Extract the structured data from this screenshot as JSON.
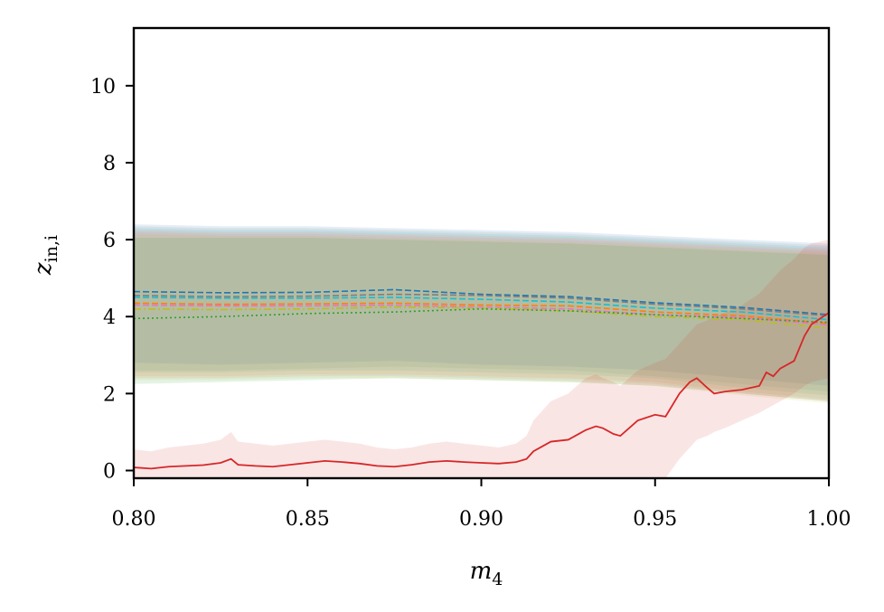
{
  "chart_data": {
    "type": "line",
    "title": "",
    "xlabel": "m_4",
    "ylabel": "z_in,i",
    "xlim": [
      0.8,
      1.0
    ],
    "ylim": [
      -0.2,
      11.5
    ],
    "xticks": [
      0.8,
      0.85,
      0.9,
      0.95,
      1.0
    ],
    "xtick_labels": [
      "0.80",
      "0.85",
      "0.90",
      "0.95",
      "1.00"
    ],
    "yticks": [
      0,
      2,
      4,
      6,
      8,
      10
    ],
    "ytick_labels": [
      "0",
      "2",
      "4",
      "6",
      "8",
      "10"
    ],
    "grid": false,
    "legend": "none",
    "x": [
      0.8,
      0.825,
      0.85,
      0.875,
      0.9,
      0.925,
      0.95,
      0.975,
      1.0
    ],
    "series": [
      {
        "color": "#1f77b4",
        "dash": "dashed",
        "values": [
          4.65,
          4.62,
          4.63,
          4.7,
          4.58,
          4.52,
          4.36,
          4.24,
          4.05
        ],
        "band_lower": [
          2.8,
          2.75,
          2.8,
          2.85,
          2.75,
          2.7,
          2.6,
          2.4,
          2.2
        ],
        "band_upper": [
          6.4,
          6.35,
          6.35,
          6.3,
          6.25,
          6.2,
          6.1,
          6.0,
          5.9
        ]
      },
      {
        "color": "#7f7f7f",
        "dash": "dashed",
        "values": [
          4.55,
          4.52,
          4.53,
          4.58,
          4.55,
          4.48,
          4.32,
          4.2,
          4.02
        ],
        "band_lower": [
          2.6,
          2.6,
          2.65,
          2.7,
          2.65,
          2.6,
          2.45,
          2.25,
          2.05
        ],
        "band_upper": [
          6.35,
          6.3,
          6.3,
          6.25,
          6.2,
          6.15,
          6.05,
          5.95,
          5.85
        ]
      },
      {
        "color": "#17becf",
        "dash": "dashed",
        "values": [
          4.5,
          4.48,
          4.48,
          4.5,
          4.45,
          4.38,
          4.22,
          4.12,
          3.92
        ],
        "band_lower": [
          2.55,
          2.55,
          2.6,
          2.6,
          2.55,
          2.5,
          2.4,
          2.15,
          1.95
        ],
        "band_upper": [
          6.3,
          6.25,
          6.25,
          6.2,
          6.15,
          6.1,
          6.0,
          5.9,
          5.8
        ]
      },
      {
        "color": "#ff7f0e",
        "dash": "dashed",
        "values": [
          4.35,
          4.32,
          4.33,
          4.35,
          4.3,
          4.28,
          4.12,
          4.02,
          3.82
        ],
        "band_lower": [
          2.45,
          2.45,
          2.5,
          2.5,
          2.45,
          2.4,
          2.3,
          2.05,
          1.85
        ],
        "band_upper": [
          6.25,
          6.2,
          6.2,
          6.15,
          6.1,
          6.05,
          5.95,
          5.85,
          5.75
        ]
      },
      {
        "color": "#e377c2",
        "dash": "dashed",
        "values": [
          4.3,
          4.28,
          4.28,
          4.3,
          4.25,
          4.2,
          4.05,
          3.98,
          3.78
        ],
        "band_lower": [
          2.4,
          2.4,
          2.45,
          2.45,
          2.4,
          2.35,
          2.25,
          2.0,
          1.8
        ],
        "band_upper": [
          6.2,
          6.15,
          6.15,
          6.1,
          6.05,
          6.0,
          5.9,
          5.8,
          5.7
        ]
      },
      {
        "color": "#bcbd22",
        "dash": "dashdot",
        "values": [
          4.2,
          4.18,
          4.2,
          4.25,
          4.22,
          4.15,
          4.0,
          3.92,
          3.7
        ],
        "band_lower": [
          2.35,
          2.35,
          2.4,
          2.4,
          2.35,
          2.3,
          2.2,
          1.95,
          1.75
        ],
        "band_upper": [
          6.15,
          6.1,
          6.1,
          6.05,
          6.0,
          5.95,
          5.85,
          5.75,
          5.65
        ]
      },
      {
        "color": "#2ca02c",
        "dash": "dotted",
        "values": [
          3.95,
          4.0,
          4.08,
          4.12,
          4.2,
          4.15,
          4.05,
          3.95,
          3.85
        ],
        "band_lower": [
          2.25,
          2.3,
          2.35,
          2.4,
          2.35,
          2.3,
          2.2,
          2.0,
          1.8
        ],
        "band_upper": [
          6.05,
          6.05,
          6.05,
          6.0,
          5.95,
          5.9,
          5.8,
          5.7,
          5.6
        ]
      }
    ],
    "highlight_series": {
      "color": "#d62728",
      "dash": "solid",
      "x": [
        0.8,
        0.805,
        0.81,
        0.815,
        0.82,
        0.825,
        0.828,
        0.83,
        0.835,
        0.84,
        0.845,
        0.85,
        0.855,
        0.86,
        0.865,
        0.87,
        0.875,
        0.88,
        0.885,
        0.89,
        0.895,
        0.9,
        0.905,
        0.91,
        0.913,
        0.915,
        0.92,
        0.925,
        0.93,
        0.933,
        0.935,
        0.938,
        0.94,
        0.945,
        0.95,
        0.953,
        0.957,
        0.96,
        0.962,
        0.965,
        0.967,
        0.97,
        0.975,
        0.98,
        0.982,
        0.984,
        0.986,
        0.99,
        0.993,
        0.995,
        1.0
      ],
      "values": [
        0.08,
        0.05,
        0.1,
        0.12,
        0.14,
        0.2,
        0.3,
        0.15,
        0.12,
        0.1,
        0.15,
        0.2,
        0.25,
        0.22,
        0.18,
        0.12,
        0.1,
        0.15,
        0.22,
        0.25,
        0.22,
        0.2,
        0.18,
        0.22,
        0.3,
        0.5,
        0.75,
        0.8,
        1.05,
        1.15,
        1.1,
        0.95,
        0.9,
        1.3,
        1.45,
        1.4,
        2.0,
        2.3,
        2.4,
        2.15,
        2.0,
        2.05,
        2.1,
        2.2,
        2.55,
        2.45,
        2.65,
        2.85,
        3.5,
        3.8,
        4.1
      ],
      "band_lower": [
        -0.2,
        -0.2,
        -0.2,
        -0.2,
        -0.2,
        -0.2,
        -0.2,
        -0.2,
        -0.2,
        -0.2,
        -0.2,
        -0.2,
        -0.2,
        -0.2,
        -0.2,
        -0.2,
        -0.2,
        -0.2,
        -0.2,
        -0.2,
        -0.2,
        -0.2,
        -0.2,
        -0.2,
        -0.2,
        -0.2,
        -0.2,
        -0.2,
        -0.2,
        -0.2,
        -0.2,
        -0.2,
        -0.2,
        -0.2,
        -0.2,
        -0.2,
        0.3,
        0.6,
        0.8,
        0.9,
        1.0,
        1.1,
        1.3,
        1.5,
        1.6,
        1.7,
        1.8,
        2.0,
        2.2,
        2.3,
        2.4
      ],
      "band_upper": [
        0.55,
        0.5,
        0.6,
        0.65,
        0.7,
        0.8,
        1.0,
        0.75,
        0.7,
        0.65,
        0.7,
        0.75,
        0.8,
        0.75,
        0.7,
        0.6,
        0.55,
        0.6,
        0.7,
        0.75,
        0.7,
        0.65,
        0.6,
        0.7,
        0.9,
        1.3,
        1.8,
        2.0,
        2.4,
        2.5,
        2.4,
        2.3,
        2.2,
        2.6,
        2.8,
        2.9,
        3.3,
        3.6,
        3.8,
        3.9,
        4.0,
        4.1,
        4.3,
        4.6,
        4.8,
        5.0,
        5.2,
        5.5,
        5.8,
        5.9,
        6.0
      ]
    }
  }
}
